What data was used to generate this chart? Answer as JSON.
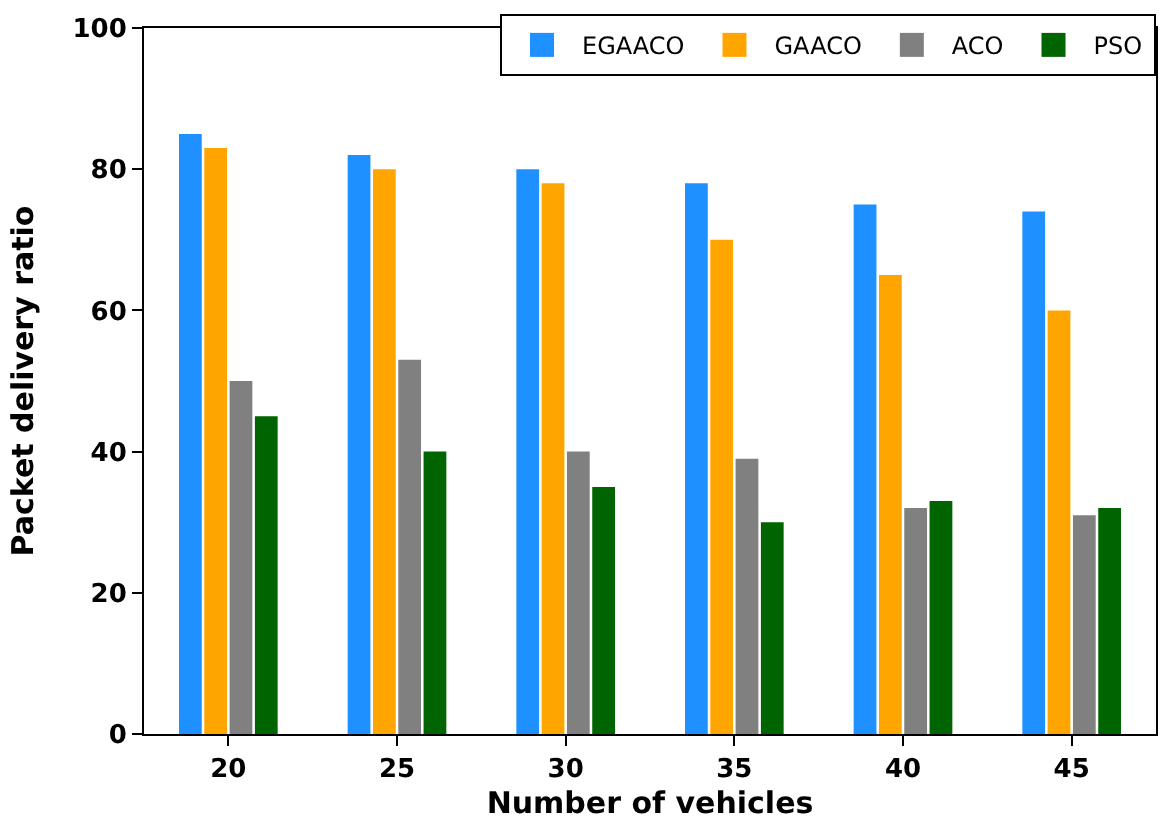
{
  "chart_data": {
    "type": "bar",
    "xlabel": "Number of vehicles",
    "ylabel": "Packet delivery ratio",
    "categories": [
      "20",
      "25",
      "30",
      "35",
      "40",
      "45"
    ],
    "series": [
      {
        "name": "EGAACO",
        "color": "#1e90ff",
        "values": [
          85,
          82,
          80,
          78,
          75,
          74
        ]
      },
      {
        "name": "GAACO",
        "color": "#ffa500",
        "values": [
          83,
          80,
          78,
          70,
          65,
          60
        ]
      },
      {
        "name": "ACO",
        "color": "#808080",
        "values": [
          50,
          53,
          40,
          39,
          32,
          31
        ]
      },
      {
        "name": "PSO",
        "color": "#006400",
        "values": [
          45,
          40,
          35,
          30,
          33,
          32
        ]
      }
    ],
    "ylim": [
      0,
      100
    ],
    "yticks": [
      0,
      20,
      40,
      60,
      80,
      100
    ],
    "grid": false,
    "legend": "top right"
  }
}
